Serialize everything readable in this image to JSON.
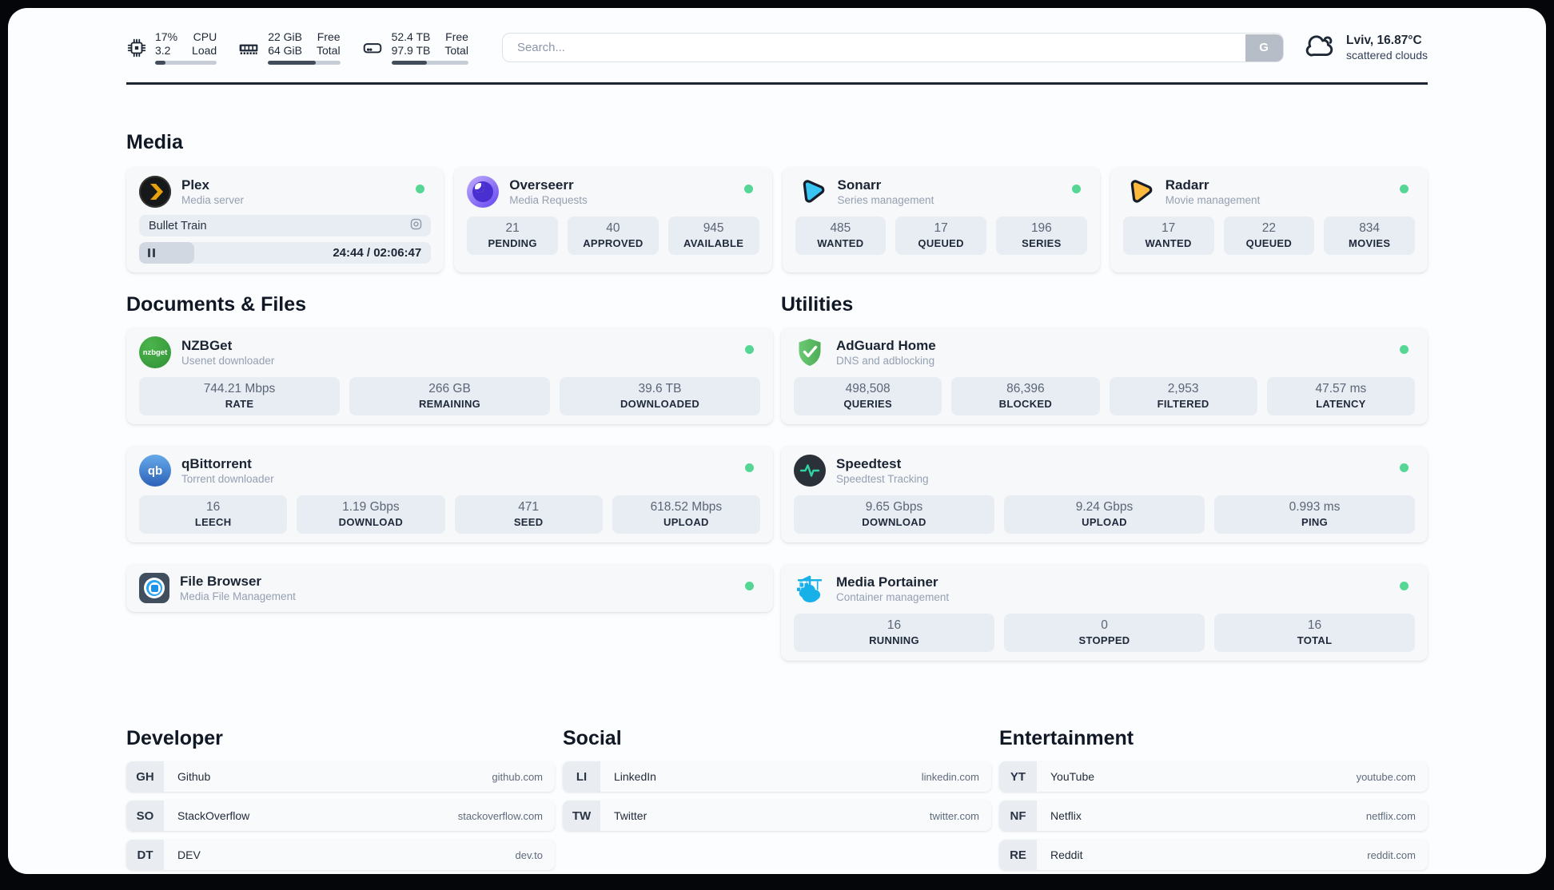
{
  "colors": {
    "status_green": "#55d694",
    "pill_bg": "#e8edf3",
    "card_bg": "#f6f8fa",
    "text_dark": "#1e2836",
    "progress_fill": "#424c5b"
  },
  "topbar": {
    "cpu": {
      "rows": [
        {
          "value": "17%",
          "label": "CPU"
        },
        {
          "value": "3.2",
          "label": "Load"
        }
      ],
      "progress_pct": 17
    },
    "memory": {
      "rows": [
        {
          "value": "22 GiB",
          "label": "Free"
        },
        {
          "value": "64 GiB",
          "label": "Total"
        }
      ],
      "progress_pct": 66
    },
    "disk": {
      "rows": [
        {
          "value": "52.4 TB",
          "label": "Free"
        },
        {
          "value": "97.9 TB",
          "label": "Total"
        }
      ],
      "progress_pct": 46
    },
    "search": {
      "placeholder": "Search...",
      "button_label": "G"
    },
    "weather": {
      "location_temperature": "Lviv, 16.87°C",
      "condition": "scattered clouds"
    }
  },
  "media": {
    "header": "Media",
    "plex": {
      "title": "Plex",
      "subtitle": "Media server",
      "now_playing": "Bullet Train",
      "time_display": "24:44 / 02:06:47",
      "progress_pct": 19
    },
    "overseerr": {
      "title": "Overseerr",
      "subtitle": "Media Requests",
      "stats": [
        {
          "value": "21",
          "label": "PENDING"
        },
        {
          "value": "40",
          "label": "APPROVED"
        },
        {
          "value": "945",
          "label": "AVAILABLE"
        }
      ]
    },
    "sonarr": {
      "title": "Sonarr",
      "subtitle": "Series management",
      "stats": [
        {
          "value": "485",
          "label": "WANTED"
        },
        {
          "value": "17",
          "label": "QUEUED"
        },
        {
          "value": "196",
          "label": "SERIES"
        }
      ]
    },
    "radarr": {
      "title": "Radarr",
      "subtitle": "Movie management",
      "stats": [
        {
          "value": "17",
          "label": "WANTED"
        },
        {
          "value": "22",
          "label": "QUEUED"
        },
        {
          "value": "834",
          "label": "MOVIES"
        }
      ]
    }
  },
  "documents": {
    "header": "Documents & Files",
    "nzbget": {
      "title": "NZBGet",
      "subtitle": "Usenet downloader",
      "stats": [
        {
          "value": "744.21 Mbps",
          "label": "RATE"
        },
        {
          "value": "266 GB",
          "label": "REMAINING"
        },
        {
          "value": "39.6 TB",
          "label": "DOWNLOADED"
        }
      ]
    },
    "qbittorrent": {
      "title": "qBittorrent",
      "subtitle": "Torrent downloader",
      "stats": [
        {
          "value": "16",
          "label": "LEECH"
        },
        {
          "value": "1.19 Gbps",
          "label": "DOWNLOAD"
        },
        {
          "value": "471",
          "label": "SEED"
        },
        {
          "value": "618.52 Mbps",
          "label": "UPLOAD"
        }
      ]
    },
    "filebrowser": {
      "title": "File Browser",
      "subtitle": "Media File Management"
    }
  },
  "utilities": {
    "header": "Utilities",
    "adguard": {
      "title": "AdGuard Home",
      "subtitle": "DNS and adblocking",
      "stats": [
        {
          "value": "498,508",
          "label": "QUERIES"
        },
        {
          "value": "86,396",
          "label": "BLOCKED"
        },
        {
          "value": "2,953",
          "label": "FILTERED"
        },
        {
          "value": "47.57 ms",
          "label": "LATENCY"
        }
      ]
    },
    "speedtest": {
      "title": "Speedtest",
      "subtitle": "Speedtest Tracking",
      "stats": [
        {
          "value": "9.65 Gbps",
          "label": "DOWNLOAD"
        },
        {
          "value": "9.24 Gbps",
          "label": "UPLOAD"
        },
        {
          "value": "0.993 ms",
          "label": "PING"
        }
      ]
    },
    "portainer": {
      "title": "Media Portainer",
      "subtitle": "Container management",
      "stats": [
        {
          "value": "16",
          "label": "RUNNING"
        },
        {
          "value": "0",
          "label": "STOPPED"
        },
        {
          "value": "16",
          "label": "TOTAL"
        }
      ]
    }
  },
  "links": {
    "developer": {
      "header": "Developer",
      "items": [
        {
          "abbr": "GH",
          "name": "Github",
          "url": "github.com"
        },
        {
          "abbr": "SO",
          "name": "StackOverflow",
          "url": "stackoverflow.com"
        },
        {
          "abbr": "DT",
          "name": "DEV",
          "url": "dev.to"
        }
      ]
    },
    "social": {
      "header": "Social",
      "items": [
        {
          "abbr": "LI",
          "name": "LinkedIn",
          "url": "linkedin.com"
        },
        {
          "abbr": "TW",
          "name": "Twitter",
          "url": "twitter.com"
        }
      ]
    },
    "entertainment": {
      "header": "Entertainment",
      "items": [
        {
          "abbr": "YT",
          "name": "YouTube",
          "url": "youtube.com"
        },
        {
          "abbr": "NF",
          "name": "Netflix",
          "url": "netflix.com"
        },
        {
          "abbr": "RE",
          "name": "Reddit",
          "url": "reddit.com"
        }
      ]
    }
  },
  "icon_labels": {
    "nzbget": "nzbget",
    "qbittorrent": "qb"
  }
}
